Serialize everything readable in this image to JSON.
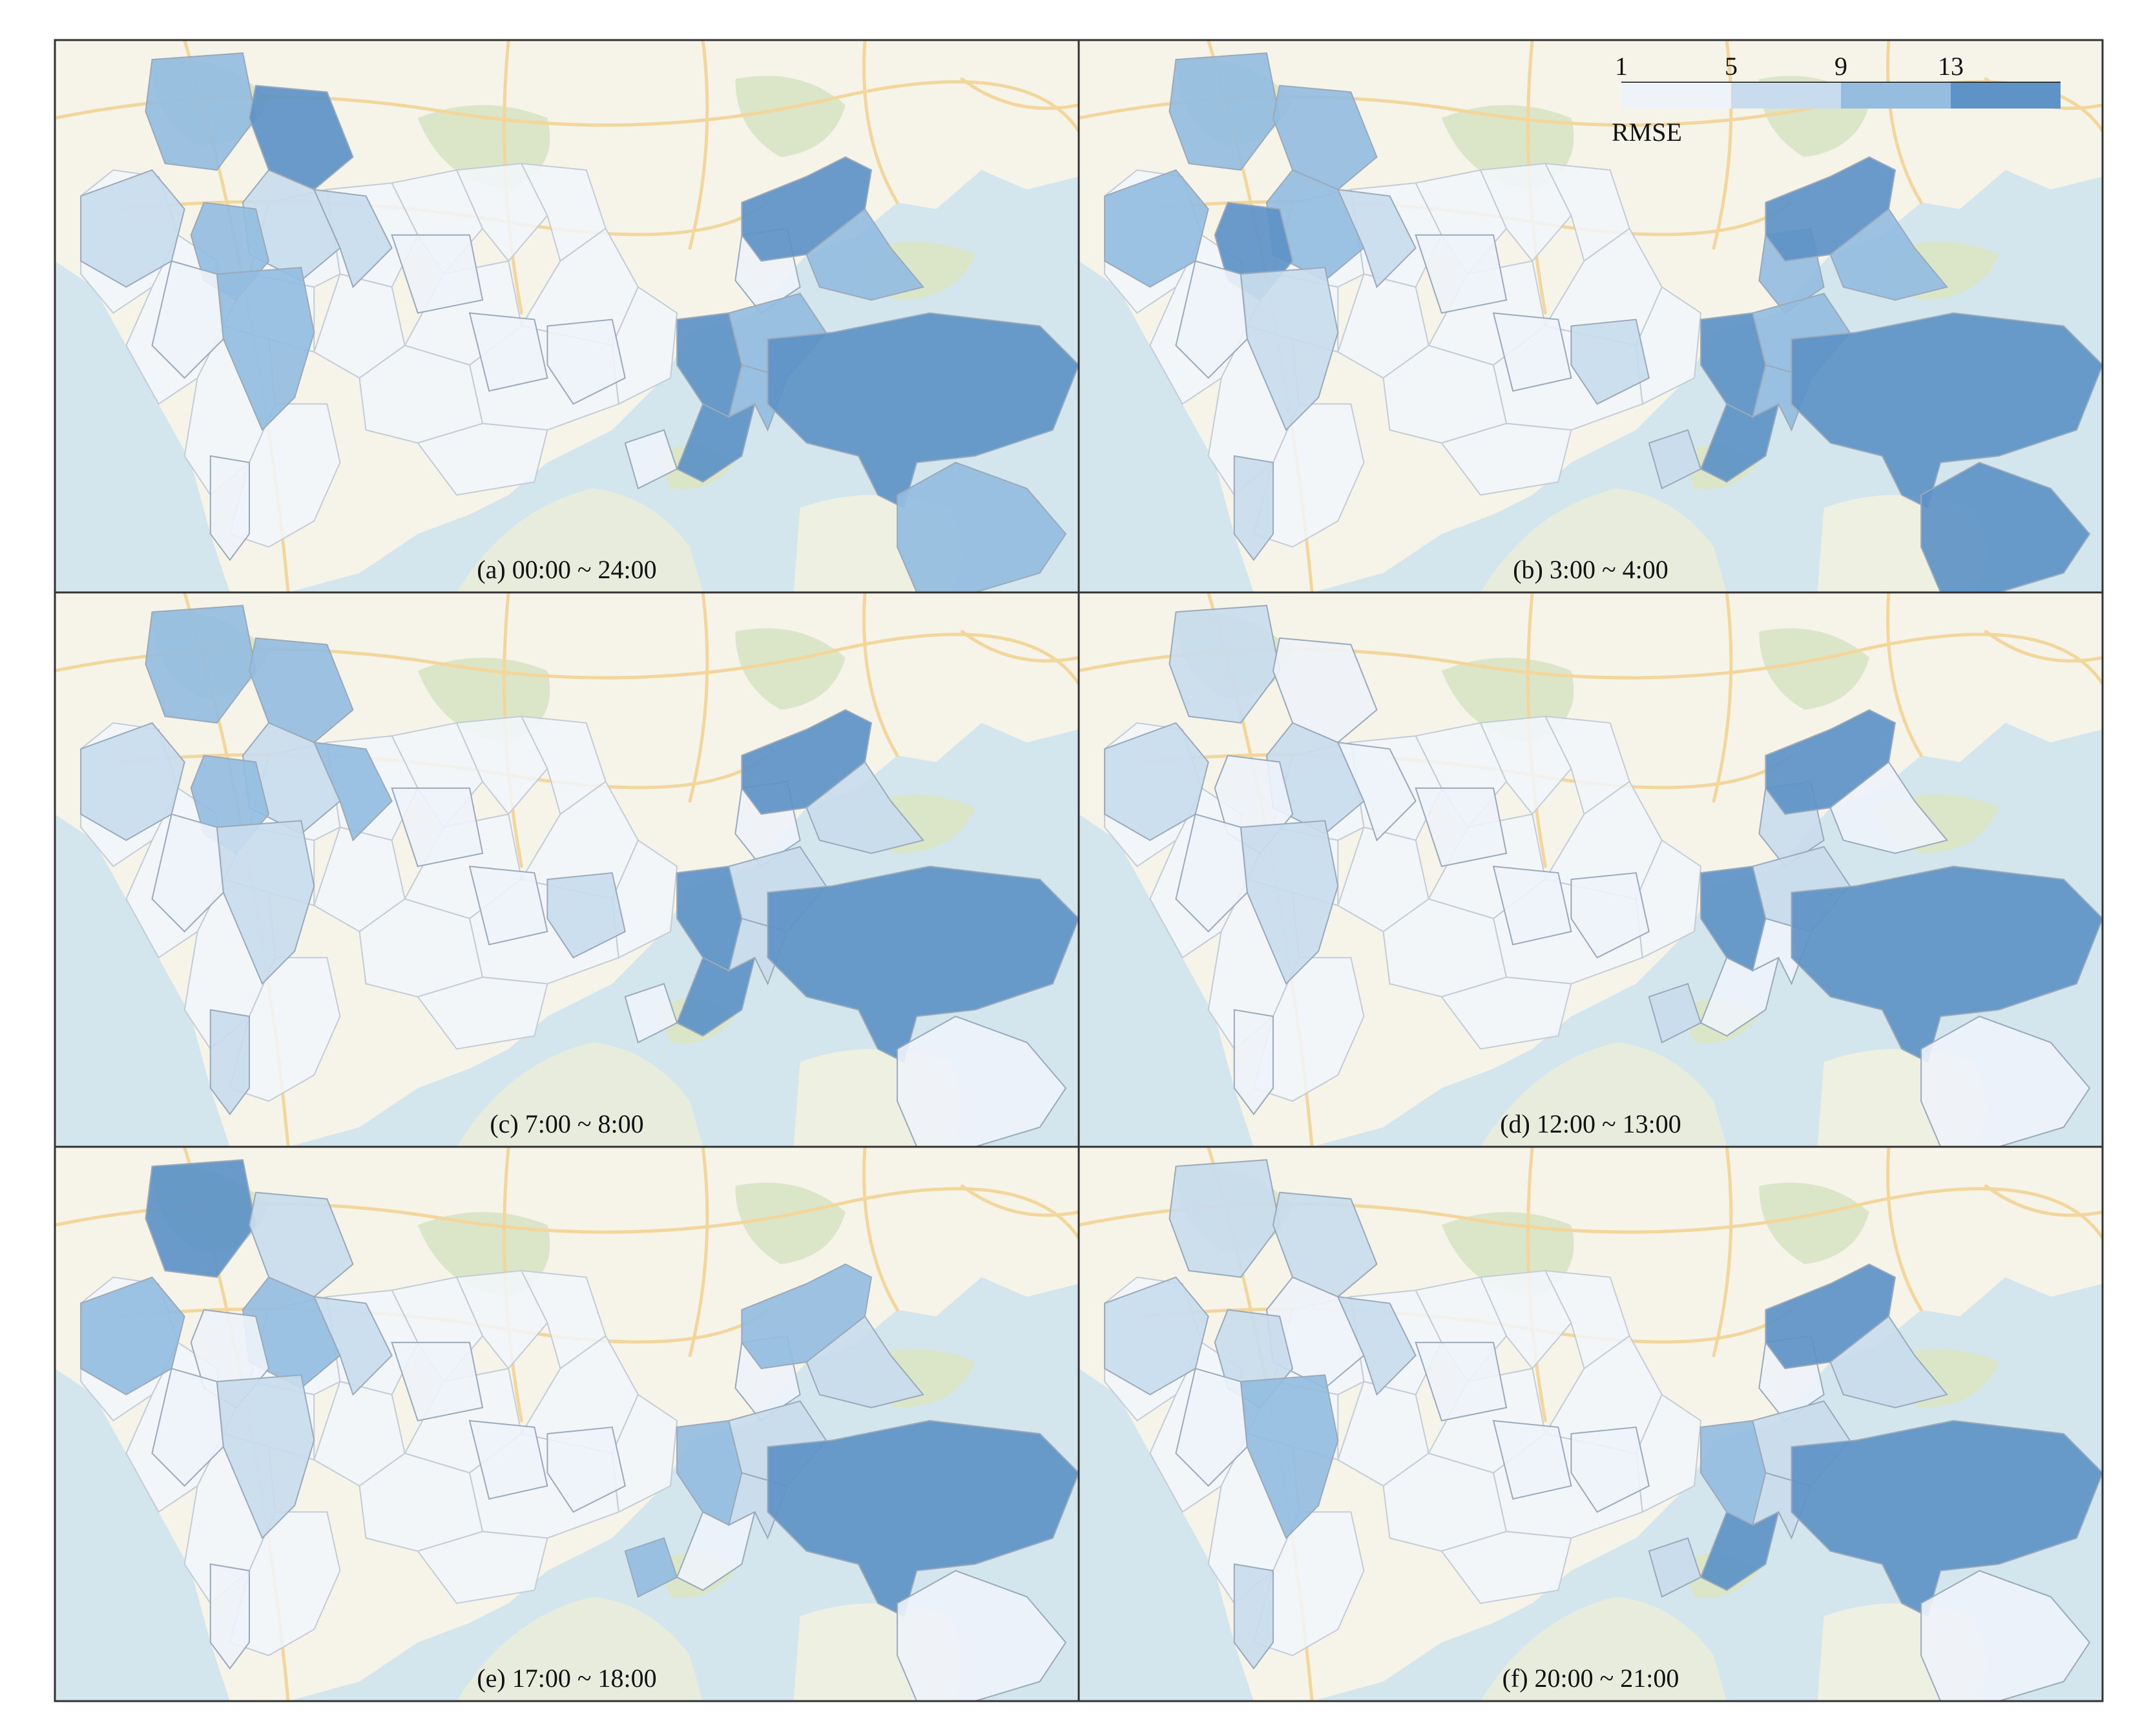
{
  "legend": {
    "title": "RMSE",
    "ticks": [
      "1",
      "5",
      "9",
      "13"
    ],
    "classes": [
      {
        "min": 1,
        "max": 5,
        "color": "#eef3fa"
      },
      {
        "min": 5,
        "max": 9,
        "color": "#c9dced"
      },
      {
        "min": 9,
        "max": 13,
        "color": "#94bde0"
      },
      {
        "min": 13,
        "max": 17,
        "color": "#5d93c6"
      }
    ]
  },
  "basemap_colors": {
    "sea": "#d3e6ee",
    "land": "#f6f3e9",
    "green": "#dbe6c8",
    "road": "#f3d69c",
    "district_fill": "#f2f6fb",
    "district_border": "#c4ccd6"
  },
  "panels": [
    {
      "id": "a",
      "caption": "(a) 00:00 ~ 24:00",
      "levels": {
        "nw1": 3,
        "nw2": 4,
        "nw3": 2,
        "nw4": 2,
        "w1": 2,
        "w2": 3,
        "w3": 3,
        "w4": 1,
        "c1": 1,
        "c2": 1,
        "c3": 1,
        "c4": 1,
        "e1": 4,
        "e2": 3,
        "e3": 4,
        "e4": 3,
        "e5": 4,
        "e6": 3,
        "se1": 4,
        "se2": 3,
        "s1": 1,
        "s2": 1
      }
    },
    {
      "id": "b",
      "caption": "(b) 3:00 ~ 4:00",
      "levels": {
        "nw1": 3,
        "nw2": 3,
        "nw3": 3,
        "nw4": 2,
        "w1": 3,
        "w2": 4,
        "w3": 2,
        "w4": 1,
        "c1": 1,
        "c2": 3,
        "c3": 2,
        "c4": 1,
        "e1": 4,
        "e2": 3,
        "e3": 4,
        "e4": 3,
        "e5": 4,
        "e6": 3,
        "se1": 4,
        "se2": 4,
        "s1": 2,
        "s2": 2
      }
    },
    {
      "id": "c",
      "caption": "(c) 7:00 ~ 8:00",
      "levels": {
        "nw1": 3,
        "nw2": 3,
        "nw3": 2,
        "nw4": 3,
        "w1": 2,
        "w2": 3,
        "w3": 2,
        "w4": 1,
        "c1": 1,
        "c2": 1,
        "c3": 2,
        "c4": 1,
        "e1": 4,
        "e2": 2,
        "e3": 4,
        "e4": 2,
        "e5": 4,
        "e6": 2,
        "se1": 4,
        "se2": 1,
        "s1": 2,
        "s2": 1
      }
    },
    {
      "id": "d",
      "caption": "(d) 12:00 ~ 13:00",
      "levels": {
        "nw1": 2,
        "nw2": 1,
        "nw3": 2,
        "nw4": 1,
        "w1": 2,
        "w2": 1,
        "w3": 2,
        "w4": 1,
        "c1": 1,
        "c2": 2,
        "c3": 1,
        "c4": 1,
        "e1": 4,
        "e2": 1,
        "e3": 4,
        "e4": 2,
        "e5": 1,
        "e6": 1,
        "se1": 4,
        "se2": 1,
        "s1": 1,
        "s2": 2
      }
    },
    {
      "id": "e",
      "caption": "(e) 17:00 ~ 18:00",
      "levels": {
        "nw1": 4,
        "nw2": 2,
        "nw3": 3,
        "nw4": 2,
        "w1": 3,
        "w2": 1,
        "w3": 2,
        "w4": 1,
        "c1": 1,
        "c2": 1,
        "c3": 1,
        "c4": 1,
        "e1": 3,
        "e2": 2,
        "e3": 3,
        "e4": 2,
        "e5": 1,
        "e6": 2,
        "se1": 4,
        "se2": 1,
        "s1": 1,
        "s2": 3
      }
    },
    {
      "id": "f",
      "caption": "(f) 20:00 ~ 21:00",
      "levels": {
        "nw1": 2,
        "nw2": 2,
        "nw3": 1,
        "nw4": 2,
        "w1": 2,
        "w2": 2,
        "w3": 3,
        "w4": 1,
        "c1": 1,
        "c2": 1,
        "c3": 1,
        "c4": 1,
        "e1": 4,
        "e2": 2,
        "e3": 3,
        "e4": 2,
        "e5": 4,
        "e6": 2,
        "se1": 4,
        "se2": 1,
        "s1": 2,
        "s2": 2
      }
    }
  ]
}
